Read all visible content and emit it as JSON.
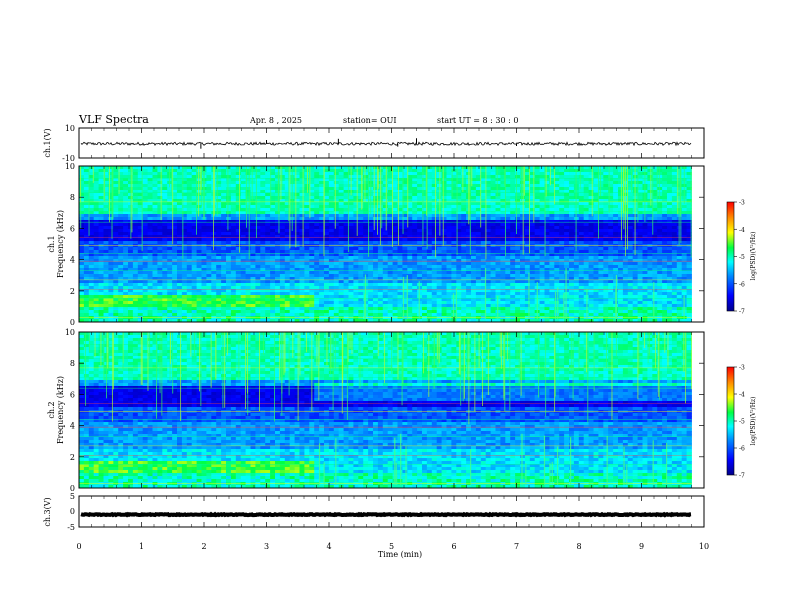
{
  "header": {
    "title": "VLF Spectra",
    "date": "Apr. 8 , 2025",
    "station": "station= OUI",
    "start_ut": "start UT =   8 : 30 : 0"
  },
  "chart_data": [
    {
      "type": "line",
      "panel": "ch1-waveform",
      "ylabel": "ch.1(V)",
      "ylim": [
        -10,
        10
      ],
      "yticks": [
        10,
        -10
      ],
      "xlim": [
        0,
        10
      ],
      "baseline": -0.5,
      "noise_amplitude": 1,
      "color": "#000000"
    },
    {
      "type": "heatmap",
      "panel": "ch1-spectrogram",
      "ylabel": "ch.1\nFrequency (kHz)",
      "ylim": [
        0,
        10
      ],
      "yticks": [
        0,
        2,
        4,
        6,
        8,
        10
      ],
      "xlim": [
        0,
        10
      ],
      "data_end_min": 9.8,
      "colorbar": {
        "label": "log(PSD)(V²/Hz)",
        "range": [
          -7,
          -3
        ],
        "ticks": [
          "-3",
          "-4",
          "-5",
          "-6",
          "-7"
        ]
      }
    },
    {
      "type": "heatmap",
      "panel": "ch2-spectrogram",
      "ylabel": "ch.2\nFrequency (kHz)",
      "ylim": [
        0,
        10
      ],
      "yticks": [
        0,
        2,
        4,
        6,
        8,
        10
      ],
      "xlim": [
        0,
        10
      ],
      "data_end_min": 9.8,
      "colorbar": {
        "label": "log(PSD)(V²/Hz)",
        "range": [
          -7,
          -3
        ],
        "ticks": [
          "-3",
          "-4",
          "-5",
          "-6",
          "-7"
        ]
      }
    },
    {
      "type": "line",
      "panel": "ch3-waveform",
      "ylabel": "ch.3(V)",
      "ylim": [
        -5,
        5
      ],
      "yticks": [
        5,
        0,
        -5
      ],
      "xlim": [
        0,
        10
      ],
      "baseline": -1,
      "noise_amplitude": 0.15,
      "color": "#000000"
    }
  ],
  "x_axis": {
    "label": "Time (min)",
    "range": [
      0,
      10
    ],
    "ticks": [
      "0",
      "1",
      "2",
      "3",
      "4",
      "5",
      "6",
      "7",
      "8",
      "9",
      "10"
    ]
  },
  "colors": {
    "colormap": [
      "#00008b",
      "#0000ff",
      "#0088ff",
      "#00ffff",
      "#00ff44",
      "#ffff00",
      "#ff8800",
      "#ff0000"
    ]
  }
}
